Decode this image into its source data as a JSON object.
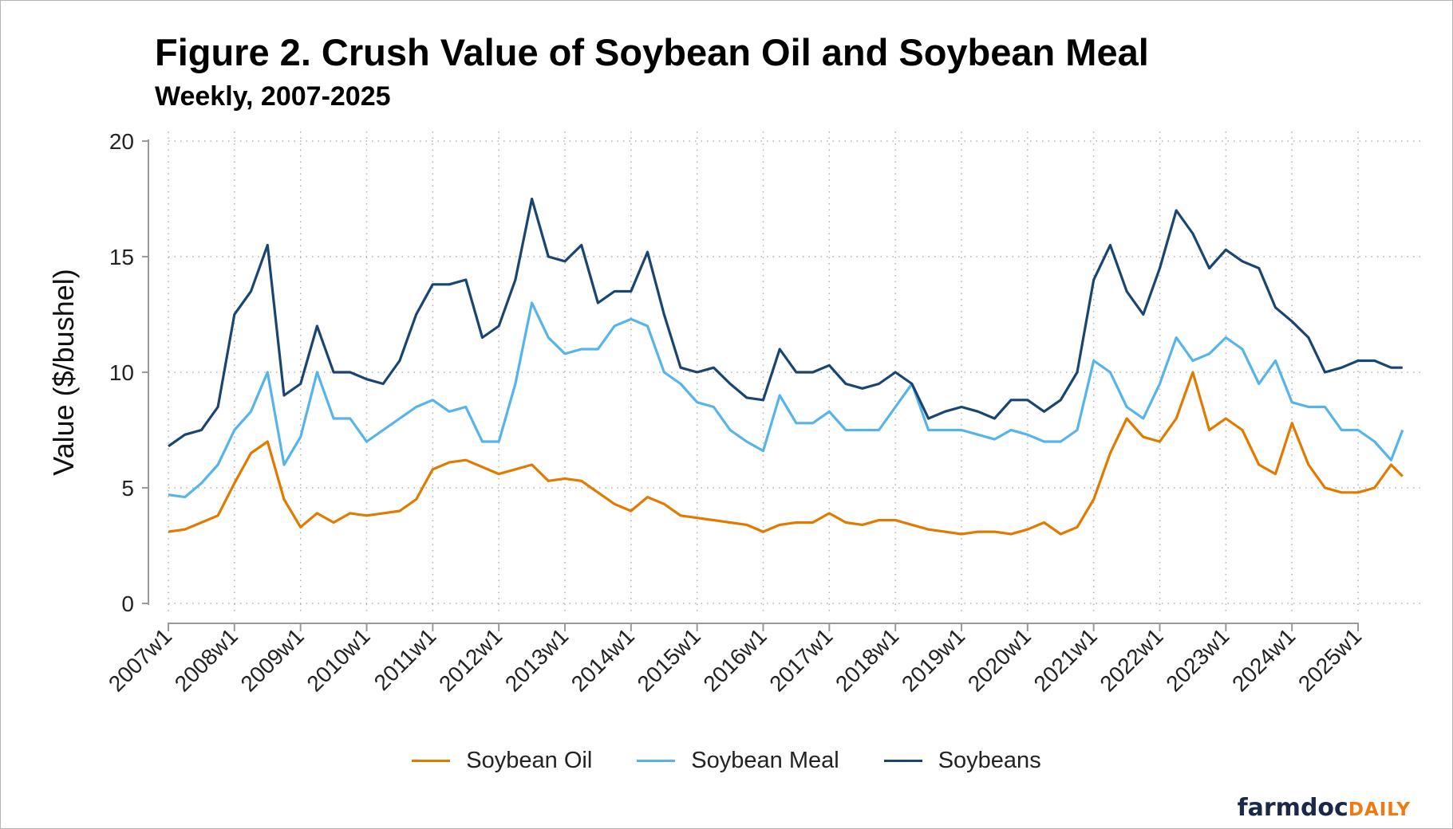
{
  "title": "Figure 2. Crush Value of Soybean Oil and Soybean Meal",
  "subtitle": "Weekly, 2007-2025",
  "logo": {
    "part1": "farmdoc",
    "part2": "DAILY"
  },
  "chart_data": {
    "type": "line",
    "title": "Figure 2. Crush Value of Soybean Oil and Soybean Meal",
    "subtitle": "Weekly, 2007-2025",
    "xlabel": "",
    "ylabel": "Value ($/bushel)",
    "ylim": [
      0,
      20
    ],
    "yticks": [
      0,
      5,
      10,
      15,
      20
    ],
    "xticks": [
      "2007w1",
      "2008w1",
      "2009w1",
      "2010w1",
      "2011w1",
      "2012w1",
      "2013w1",
      "2014w1",
      "2015w1",
      "2016w1",
      "2017w1",
      "2018w1",
      "2019w1",
      "2020w1",
      "2021w1",
      "2022w1",
      "2023w1",
      "2024w1",
      "2025w1"
    ],
    "grid": true,
    "legend_position": "bottom",
    "x": [
      "2007w1",
      "2007w14",
      "2007w27",
      "2007w40",
      "2008w1",
      "2008w14",
      "2008w27",
      "2008w40",
      "2009w1",
      "2009w14",
      "2009w27",
      "2009w40",
      "2010w1",
      "2010w14",
      "2010w27",
      "2010w40",
      "2011w1",
      "2011w14",
      "2011w27",
      "2011w40",
      "2012w1",
      "2012w14",
      "2012w27",
      "2012w40",
      "2013w1",
      "2013w14",
      "2013w27",
      "2013w40",
      "2014w1",
      "2014w14",
      "2014w27",
      "2014w40",
      "2015w1",
      "2015w14",
      "2015w27",
      "2015w40",
      "2016w1",
      "2016w14",
      "2016w27",
      "2016w40",
      "2017w1",
      "2017w14",
      "2017w27",
      "2017w40",
      "2018w1",
      "2018w14",
      "2018w27",
      "2018w40",
      "2019w1",
      "2019w14",
      "2019w27",
      "2019w40",
      "2020w1",
      "2020w14",
      "2020w27",
      "2020w40",
      "2021w1",
      "2021w14",
      "2021w27",
      "2021w40",
      "2022w1",
      "2022w14",
      "2022w27",
      "2022w40",
      "2023w1",
      "2023w14",
      "2023w27",
      "2023w40",
      "2024w1",
      "2024w14",
      "2024w27",
      "2024w40",
      "2025w1",
      "2025w14",
      "2025w27",
      "2025w36"
    ],
    "series": [
      {
        "name": "Soybean Oil",
        "color": "#e07b00",
        "values": [
          3.1,
          3.2,
          3.5,
          3.8,
          5.2,
          6.5,
          7.0,
          4.5,
          3.3,
          3.9,
          3.5,
          3.9,
          3.8,
          3.9,
          4.0,
          4.5,
          5.8,
          6.1,
          6.2,
          5.9,
          5.6,
          5.8,
          6.0,
          5.3,
          5.4,
          5.3,
          4.8,
          4.3,
          4.0,
          4.6,
          4.3,
          3.8,
          3.7,
          3.6,
          3.5,
          3.4,
          3.1,
          3.4,
          3.5,
          3.5,
          3.9,
          3.5,
          3.4,
          3.6,
          3.6,
          3.4,
          3.2,
          3.1,
          3.0,
          3.1,
          3.1,
          3.0,
          3.2,
          3.5,
          3.0,
          3.3,
          4.5,
          6.5,
          8.0,
          7.2,
          7.0,
          8.0,
          10.0,
          7.5,
          8.0,
          7.5,
          6.0,
          5.6,
          7.8,
          6.0,
          5.0,
          4.8,
          4.8,
          5.0,
          6.0,
          5.5
        ]
      },
      {
        "name": "Soybean Meal",
        "color": "#56b4e9",
        "values": [
          4.7,
          4.6,
          5.2,
          6.0,
          7.5,
          8.3,
          10.0,
          6.0,
          7.2,
          10.0,
          8.0,
          8.0,
          7.0,
          7.5,
          8.0,
          8.5,
          8.8,
          8.3,
          8.5,
          7.0,
          7.0,
          9.5,
          13.0,
          11.5,
          10.8,
          11.0,
          11.0,
          12.0,
          12.3,
          12.0,
          10.0,
          9.5,
          8.7,
          8.5,
          7.5,
          7.0,
          6.6,
          9.0,
          7.8,
          7.8,
          8.3,
          7.5,
          7.5,
          7.5,
          8.5,
          9.5,
          7.5,
          7.5,
          7.5,
          7.3,
          7.1,
          7.5,
          7.3,
          7.0,
          7.0,
          7.5,
          10.5,
          10.0,
          8.5,
          8.0,
          9.5,
          11.5,
          10.5,
          10.8,
          11.5,
          11.0,
          9.5,
          10.5,
          8.7,
          8.5,
          8.5,
          7.5,
          7.5,
          7.0,
          6.2,
          7.5
        ]
      },
      {
        "name": "Soybeans",
        "color": "#1a4570",
        "values": [
          6.8,
          7.3,
          7.5,
          8.5,
          12.5,
          13.5,
          15.5,
          9.0,
          9.5,
          12.0,
          10.0,
          10.0,
          9.7,
          9.5,
          10.5,
          12.5,
          13.8,
          13.8,
          14.0,
          11.5,
          12.0,
          14.0,
          17.5,
          15.0,
          14.8,
          15.5,
          13.0,
          13.5,
          13.5,
          15.2,
          12.5,
          10.2,
          10.0,
          10.2,
          9.5,
          8.9,
          8.8,
          11.0,
          10.0,
          10.0,
          10.3,
          9.5,
          9.3,
          9.5,
          10.0,
          9.5,
          8.0,
          8.3,
          8.5,
          8.3,
          8.0,
          8.8,
          8.8,
          8.3,
          8.8,
          10.0,
          14.0,
          15.5,
          13.5,
          12.5,
          14.5,
          17.0,
          16.0,
          14.5,
          15.3,
          14.8,
          14.5,
          12.8,
          12.2,
          11.5,
          10.0,
          10.2,
          10.5,
          10.5,
          10.2,
          10.2
        ]
      }
    ]
  }
}
